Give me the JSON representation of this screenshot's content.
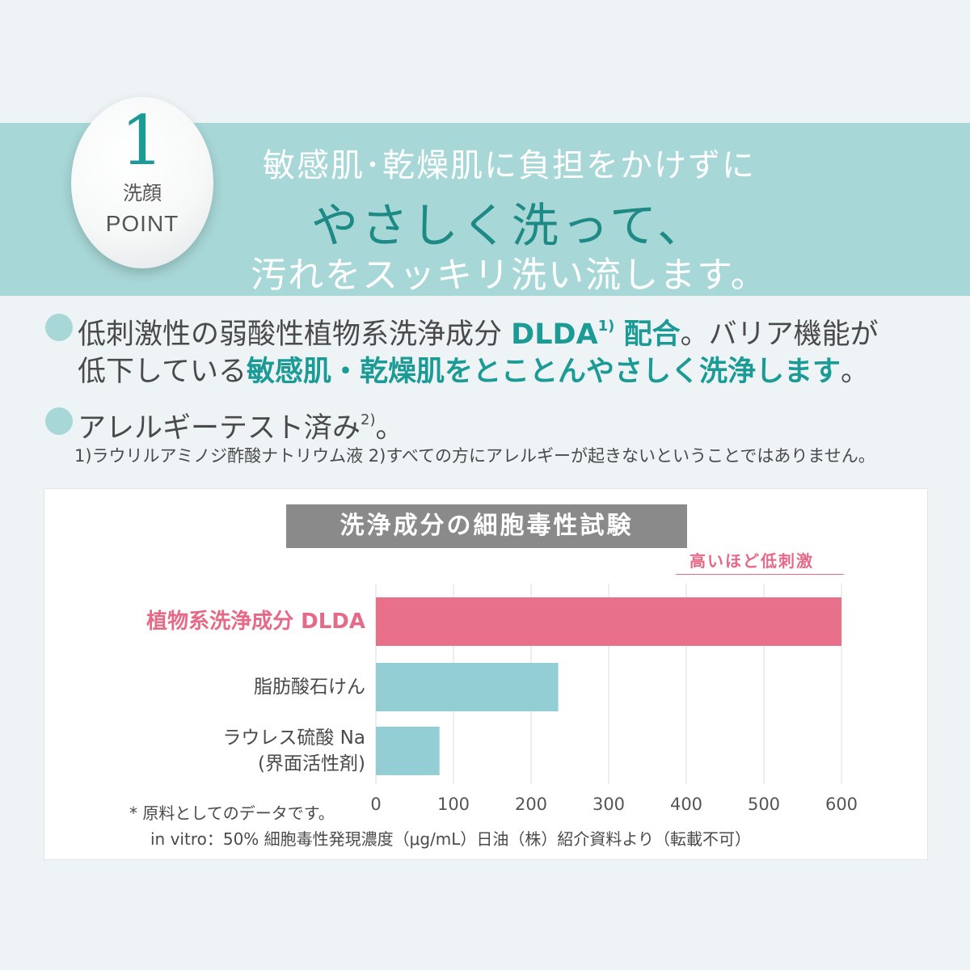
{
  "point": {
    "number": "1",
    "sub": "洗顔",
    "word": "POINT"
  },
  "headline": {
    "line1": "敏感肌･乾燥肌に負担をかけずに",
    "line2": "やさしく洗って、",
    "line3": "汚れをスッキリ洗い流します。"
  },
  "bullets": {
    "b1_part1": "低刺激性の弱酸性植物系洗浄成分",
    "b1_accent1": "DLDA",
    "b1_sup": "1)",
    "b1_accent2": "配合",
    "b1_part2": "。バリア機能が",
    "b1_line2_part1": "低下している",
    "b1_line2_accent": "敏感肌・乾燥肌をとことんやさしく洗浄します",
    "b1_line2_end": "。",
    "b2_text": "アレルギーテスト済み",
    "b2_sup": "2)",
    "b2_end": "。"
  },
  "footnotes": "1)ラウリルアミノジ酢酸ナトリウム液 2)すべての方にアレルギーが起きないということではありません。",
  "chart_data": {
    "type": "bar",
    "orientation": "horizontal",
    "title": "洗浄成分の細胞毒性試験",
    "annotation": "高いほど低刺激",
    "categories": [
      "植物系洗浄成分 DLDA",
      "脂肪酸石けん",
      "ラウレス硫酸 Na\n(界面活性剤)"
    ],
    "category_lines": [
      [
        "植物系洗浄成分 DLDA"
      ],
      [
        "脂肪酸石けん"
      ],
      [
        "ラウレス硫酸 Na",
        "(界面活性剤)"
      ]
    ],
    "values": [
      600,
      235,
      82
    ],
    "colors": [
      "#e8708a",
      "#93ced4",
      "#93ced4"
    ],
    "label_colors": [
      "#e56a87",
      "#4a4a4a",
      "#4a4a4a"
    ],
    "xlim": [
      0,
      600
    ],
    "xticks": [
      0,
      100,
      200,
      300,
      400,
      500,
      600
    ],
    "grid": true
  },
  "notes": {
    "line1": "* 原料としてのデータです。",
    "line2": "in vitro：50% 細胞毒性発現濃度（μg/mL）日油（株）紹介資料より（転載不可）"
  }
}
